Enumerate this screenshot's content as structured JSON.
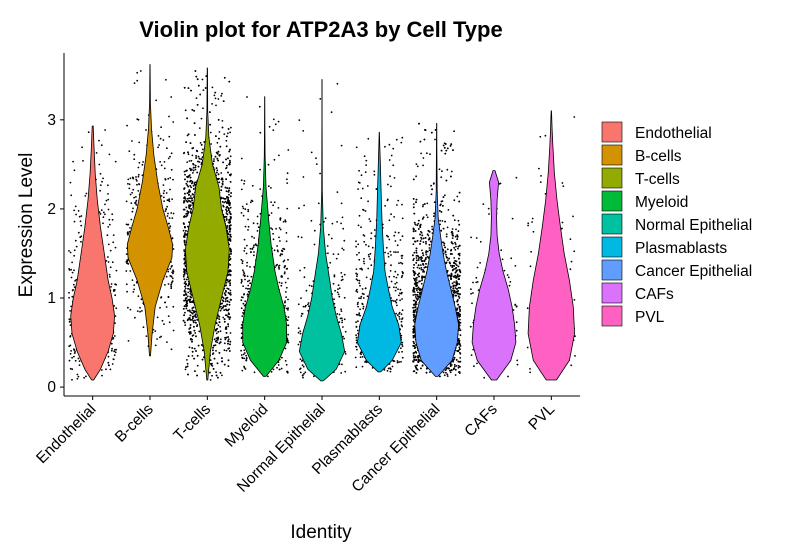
{
  "chart_data": {
    "type": "violin",
    "title": "Violin plot for ATP2A3 by Cell Type",
    "xlabel": "Identity",
    "ylabel": "Expression Level",
    "ylim": [
      -0.1,
      3.75
    ],
    "yticks": [
      0,
      1,
      2,
      3
    ],
    "grid": false,
    "legend_position": "right",
    "categories": [
      "Endothelial",
      "B-cells",
      "T-cells",
      "Myeloid",
      "Normal Epithelial",
      "Plasmablasts",
      "Cancer Epithelial",
      "CAFs",
      "PVL"
    ],
    "series": [
      {
        "name": "Endothelial",
        "color": "#F8766D",
        "min": 0.08,
        "max": 2.93,
        "median": 0.9,
        "density": [
          [
            0.08,
            0.04
          ],
          [
            0.2,
            0.3
          ],
          [
            0.4,
            0.6
          ],
          [
            0.6,
            0.8
          ],
          [
            0.8,
            0.85
          ],
          [
            1.0,
            0.75
          ],
          [
            1.2,
            0.6
          ],
          [
            1.5,
            0.45
          ],
          [
            1.8,
            0.3
          ],
          [
            2.1,
            0.18
          ],
          [
            2.4,
            0.1
          ],
          [
            2.7,
            0.05
          ],
          [
            2.93,
            0.02
          ]
        ],
        "points": 420,
        "jitter_min": 0.0,
        "jitter_max": 2.6
      },
      {
        "name": "B-cells",
        "color": "#D39200",
        "min": 0.35,
        "max": 3.62,
        "median": 1.55,
        "density": [
          [
            0.35,
            0.02
          ],
          [
            0.6,
            0.08
          ],
          [
            0.9,
            0.2
          ],
          [
            1.2,
            0.5
          ],
          [
            1.45,
            0.85
          ],
          [
            1.6,
            0.88
          ],
          [
            1.8,
            0.7
          ],
          [
            2.0,
            0.5
          ],
          [
            2.3,
            0.3
          ],
          [
            2.6,
            0.15
          ],
          [
            2.9,
            0.06
          ],
          [
            3.2,
            0.015
          ],
          [
            3.62,
            0.005
          ]
        ],
        "points": 500,
        "jitter_min": 0.0,
        "jitter_max": 3.62
      },
      {
        "name": "T-cells",
        "color": "#93AA00",
        "min": 0.08,
        "max": 3.58,
        "median": 1.5,
        "density": [
          [
            0.08,
            0.02
          ],
          [
            0.4,
            0.12
          ],
          [
            0.7,
            0.3
          ],
          [
            1.0,
            0.55
          ],
          [
            1.3,
            0.8
          ],
          [
            1.55,
            0.85
          ],
          [
            1.8,
            0.72
          ],
          [
            2.0,
            0.55
          ],
          [
            2.25,
            0.45
          ],
          [
            2.5,
            0.2
          ],
          [
            2.8,
            0.06
          ],
          [
            3.1,
            0.015
          ],
          [
            3.58,
            0.005
          ]
        ],
        "points": 3000,
        "jitter_min": 0.0,
        "jitter_max": 3.0
      },
      {
        "name": "Myeloid",
        "color": "#00BA38",
        "min": 0.12,
        "max": 3.26,
        "median": 0.7,
        "density": [
          [
            0.12,
            0.05
          ],
          [
            0.3,
            0.55
          ],
          [
            0.5,
            0.85
          ],
          [
            0.7,
            0.85
          ],
          [
            0.9,
            0.75
          ],
          [
            1.1,
            0.55
          ],
          [
            1.3,
            0.4
          ],
          [
            1.6,
            0.25
          ],
          [
            1.9,
            0.15
          ],
          [
            2.25,
            0.05
          ],
          [
            2.6,
            0.015
          ],
          [
            2.9,
            0.008
          ],
          [
            3.26,
            0.004
          ]
        ],
        "points": 600,
        "jitter_min": 0.0,
        "jitter_max": 3.0
      },
      {
        "name": "Normal Epithelial",
        "color": "#00C19F",
        "min": 0.07,
        "max": 3.45,
        "median": 0.5,
        "density": [
          [
            0.07,
            0.05
          ],
          [
            0.2,
            0.55
          ],
          [
            0.4,
            0.88
          ],
          [
            0.6,
            0.75
          ],
          [
            0.8,
            0.55
          ],
          [
            1.0,
            0.4
          ],
          [
            1.2,
            0.3
          ],
          [
            1.5,
            0.14
          ],
          [
            1.8,
            0.05
          ],
          [
            2.2,
            0.01
          ],
          [
            2.6,
            0.006
          ],
          [
            3.0,
            0.005
          ],
          [
            3.45,
            0.004
          ]
        ],
        "points": 300,
        "jitter_min": 0.0,
        "jitter_max": 3.45
      },
      {
        "name": "Plasmablasts",
        "color": "#00B9E3",
        "min": 0.17,
        "max": 2.86,
        "median": 0.6,
        "density": [
          [
            0.17,
            0.05
          ],
          [
            0.3,
            0.5
          ],
          [
            0.5,
            0.85
          ],
          [
            0.7,
            0.75
          ],
          [
            0.9,
            0.5
          ],
          [
            1.1,
            0.35
          ],
          [
            1.3,
            0.22
          ],
          [
            1.6,
            0.15
          ],
          [
            1.9,
            0.1
          ],
          [
            2.2,
            0.07
          ],
          [
            2.5,
            0.04
          ],
          [
            2.7,
            0.02
          ],
          [
            2.86,
            0.004
          ]
        ],
        "points": 550,
        "jitter_min": 0.0,
        "jitter_max": 2.6
      },
      {
        "name": "Cancer Epithelial",
        "color": "#619CFF",
        "min": 0.12,
        "max": 2.96,
        "median": 0.6,
        "density": [
          [
            0.12,
            0.05
          ],
          [
            0.3,
            0.6
          ],
          [
            0.5,
            0.8
          ],
          [
            0.7,
            0.85
          ],
          [
            0.9,
            0.72
          ],
          [
            1.1,
            0.55
          ],
          [
            1.3,
            0.38
          ],
          [
            1.5,
            0.25
          ],
          [
            1.7,
            0.15
          ],
          [
            1.9,
            0.06
          ],
          [
            2.2,
            0.02
          ],
          [
            2.6,
            0.01
          ],
          [
            2.96,
            0.004
          ]
        ],
        "points": 2600,
        "jitter_min": 0.0,
        "jitter_max": 2.2
      },
      {
        "name": "CAFs",
        "color": "#DB72FB",
        "min": 0.08,
        "max": 2.43,
        "median": 0.6,
        "density": [
          [
            0.08,
            0.1
          ],
          [
            0.3,
            0.65
          ],
          [
            0.5,
            0.85
          ],
          [
            0.7,
            0.8
          ],
          [
            0.9,
            0.7
          ],
          [
            1.1,
            0.55
          ],
          [
            1.3,
            0.35
          ],
          [
            1.5,
            0.2
          ],
          [
            1.7,
            0.12
          ],
          [
            1.9,
            0.1
          ],
          [
            2.1,
            0.12
          ],
          [
            2.3,
            0.18
          ],
          [
            2.43,
            0.04
          ]
        ],
        "points": 150,
        "jitter_min": 0.0,
        "jitter_max": 2.2
      },
      {
        "name": "PVL",
        "color": "#FF61C3",
        "min": 0.08,
        "max": 3.1,
        "median": 0.8,
        "density": [
          [
            0.08,
            0.2
          ],
          [
            0.3,
            0.7
          ],
          [
            0.6,
            0.9
          ],
          [
            0.9,
            0.85
          ],
          [
            1.2,
            0.7
          ],
          [
            1.5,
            0.5
          ],
          [
            1.8,
            0.35
          ],
          [
            2.1,
            0.22
          ],
          [
            2.4,
            0.12
          ],
          [
            2.7,
            0.06
          ],
          [
            2.9,
            0.03
          ],
          [
            3.0,
            0.02
          ],
          [
            3.1,
            0.006
          ]
        ],
        "points": 130,
        "jitter_min": 0.0,
        "jitter_max": 2.8
      }
    ]
  }
}
